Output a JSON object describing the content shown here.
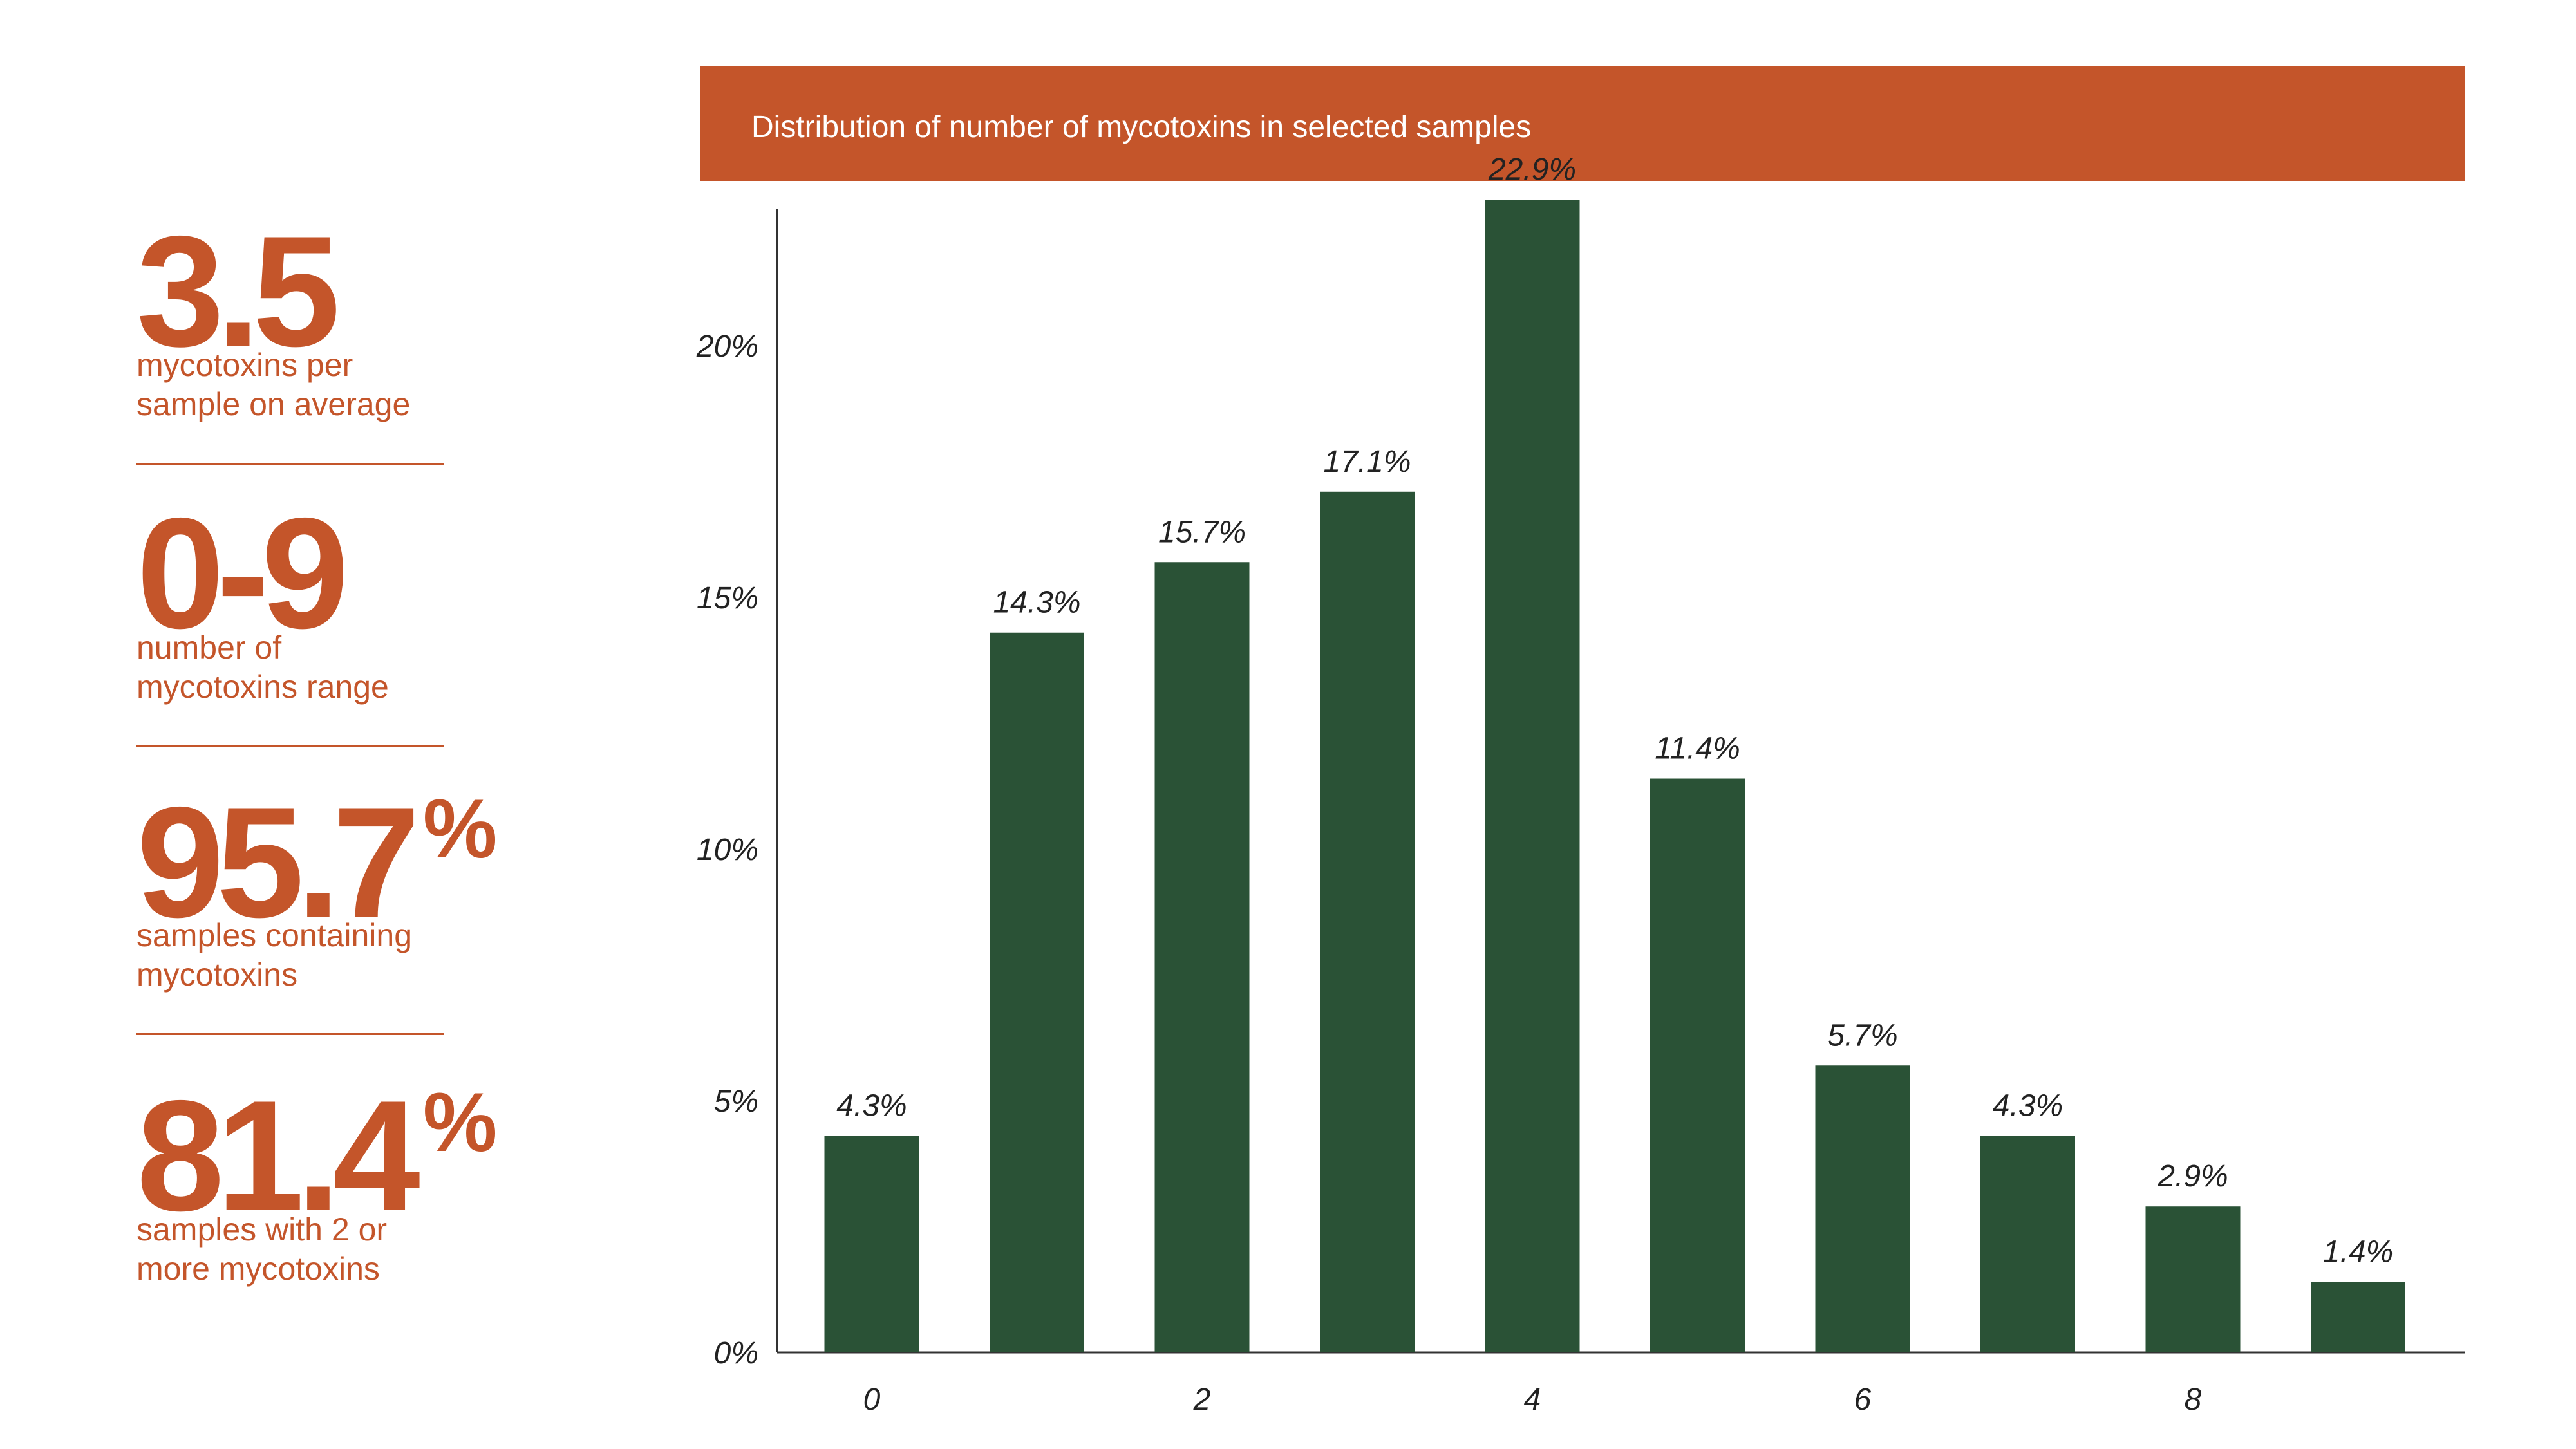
{
  "stats": [
    {
      "value": "3.5",
      "suffix": "",
      "caption_line1": "mycotoxins per",
      "caption_line2": "sample on average"
    },
    {
      "value": "0-9",
      "suffix": "",
      "caption_line1": "number of",
      "caption_line2": "mycotoxins range"
    },
    {
      "value": "95.7",
      "suffix": "%",
      "caption_line1": "samples containing",
      "caption_line2": "mycotoxins"
    },
    {
      "value": "81.4",
      "suffix": "%",
      "caption_line1": "samples with 2 or",
      "caption_line2": "more mycotoxins"
    }
  ],
  "colors": {
    "accent": "#c4552a",
    "bar": "#2a5236",
    "axis": "#333333",
    "label": "#222222"
  },
  "chart_data": {
    "type": "bar",
    "title": "Distribution of number of mycotoxins in selected samples",
    "xlabel": "",
    "ylabel": "",
    "categories": [
      0,
      1,
      2,
      3,
      4,
      5,
      6,
      7,
      8,
      9
    ],
    "values": [
      4.3,
      14.3,
      15.7,
      17.1,
      22.9,
      11.4,
      5.7,
      4.3,
      2.9,
      1.4
    ],
    "value_labels": [
      "4.3%",
      "14.3%",
      "15.7%",
      "17.1%",
      "22.9%",
      "11.4%",
      "5.7%",
      "4.3%",
      "2.9%",
      "1.4%"
    ],
    "x_tick_labels": [
      "0",
      "2",
      "4",
      "6",
      "8"
    ],
    "x_tick_values": [
      0,
      2,
      4,
      6,
      8
    ],
    "y_tick_labels": [
      "0%",
      "5%",
      "10%",
      "15%",
      "20%"
    ],
    "y_tick_values": [
      0,
      5,
      10,
      15,
      20
    ],
    "ylim": [
      0,
      22.5
    ],
    "grid": false,
    "legend": "none"
  }
}
